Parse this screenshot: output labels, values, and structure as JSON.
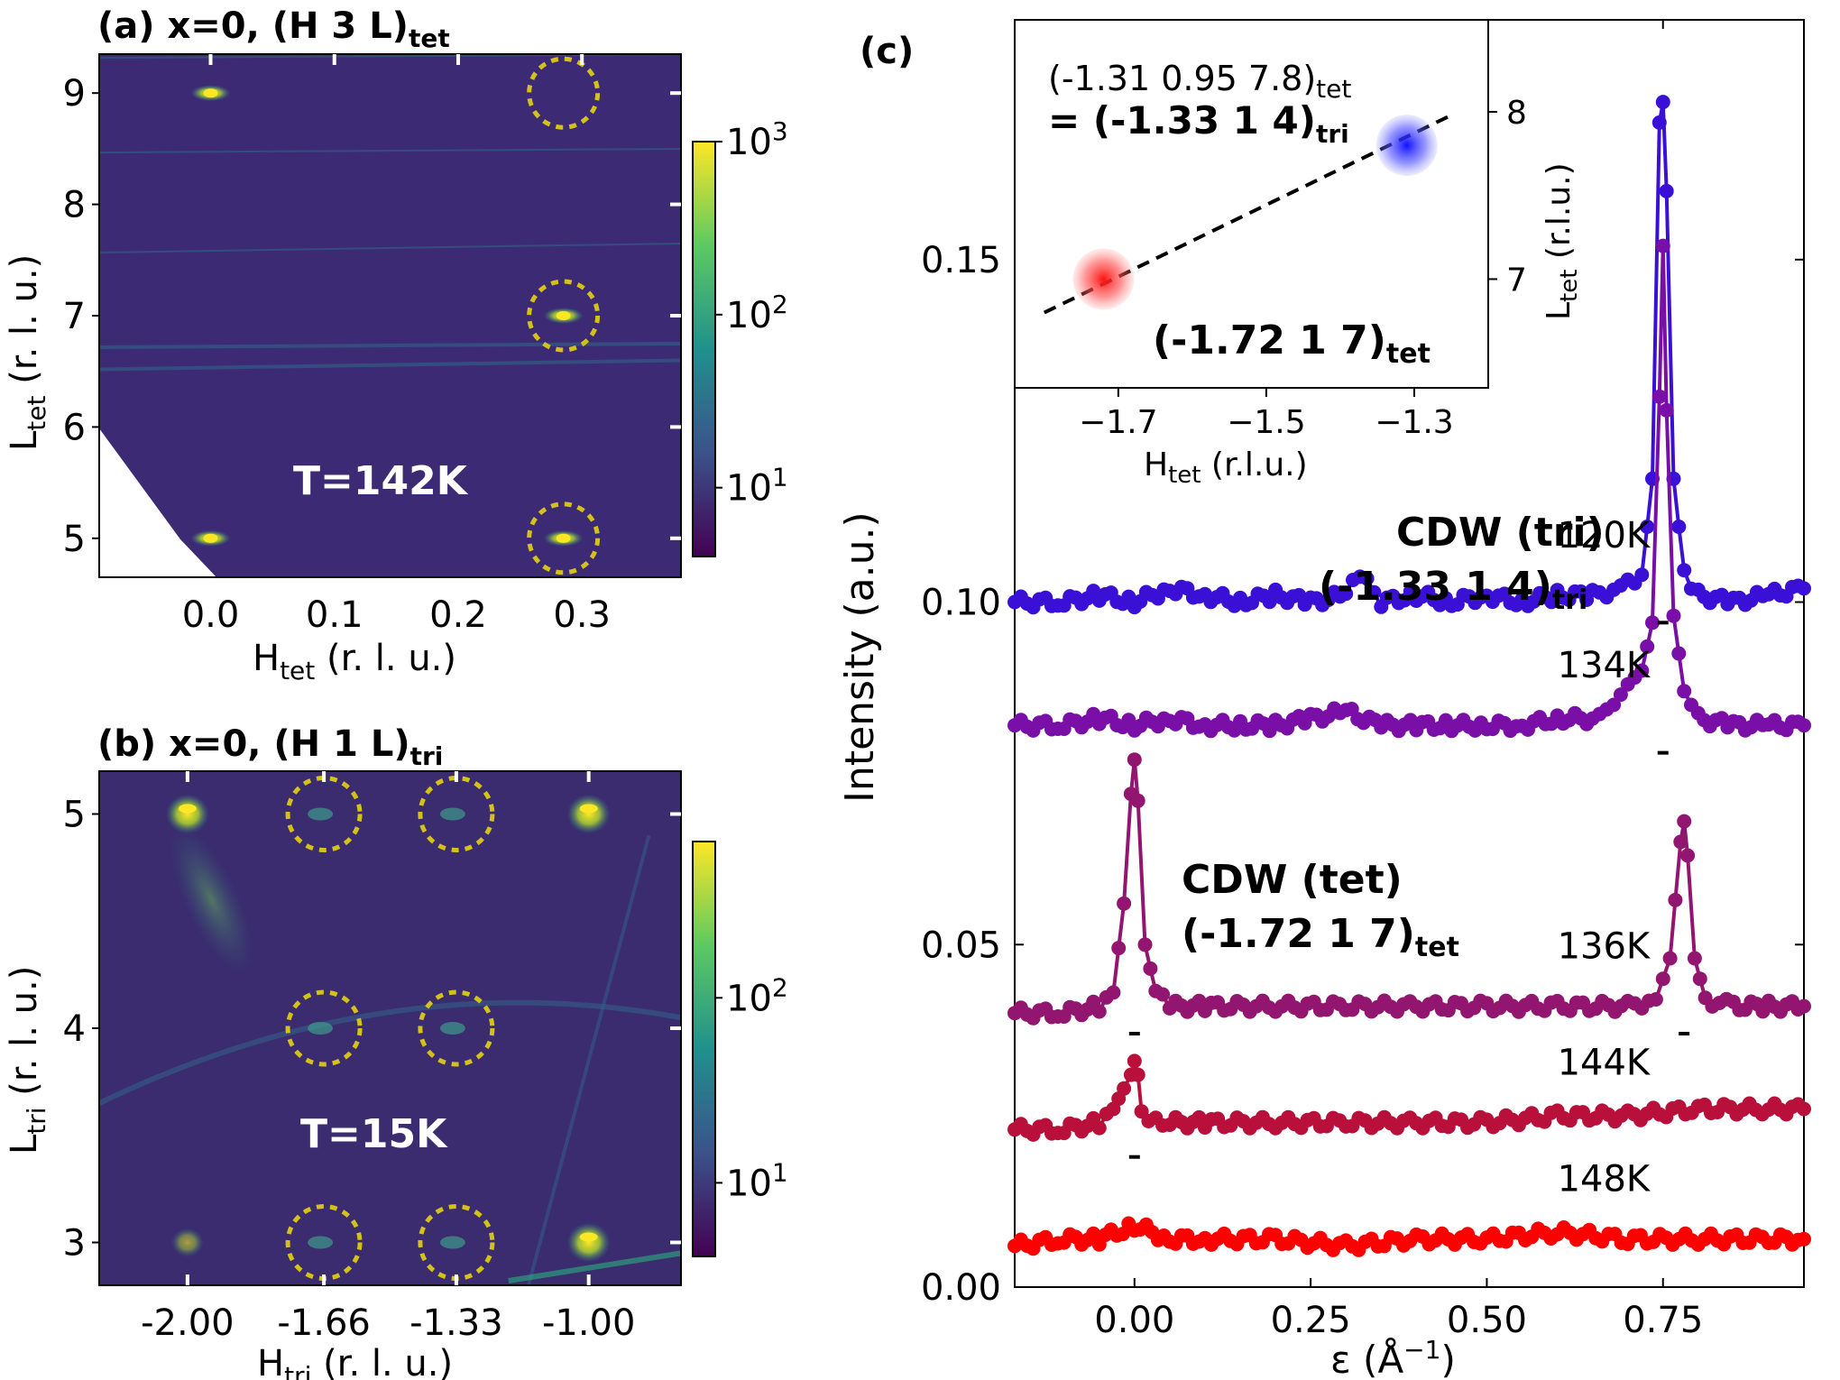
{
  "panels": {
    "a": {
      "title_main": "(a) x=0, (H 3 L)",
      "title_sub": "tet",
      "xlabel_main": "H",
      "xlabel_sub": "tet",
      "xlabel_unit": " (r. l. u.)",
      "ylabel_main": "L",
      "ylabel_sub": "tet",
      "ylabel_unit": " (r. l. u.)",
      "xticks": [
        "0.0",
        "0.1",
        "0.2",
        "0.3"
      ],
      "yticks": [
        "5",
        "6",
        "7",
        "8",
        "9"
      ],
      "annotation": "T=142K",
      "colorbar_ticks": [
        {
          "base": "10",
          "exp": "1"
        },
        {
          "base": "10",
          "exp": "2"
        },
        {
          "base": "10",
          "exp": "3"
        }
      ]
    },
    "b": {
      "title_main": "(b) x=0, (H 1 L)",
      "title_sub": "tri",
      "xlabel_main": "H",
      "xlabel_sub": "tri",
      "xlabel_unit": " (r. l. u.)",
      "ylabel_main": "L",
      "ylabel_sub": "tri",
      "ylabel_unit": " (r. l. u.)",
      "xticks": [
        "-2.00",
        "-1.66",
        "-1.33",
        "-1.00"
      ],
      "yticks": [
        "3",
        "4",
        "5"
      ],
      "annotation": "T=15K",
      "colorbar_ticks": [
        {
          "base": "10",
          "exp": "1"
        },
        {
          "base": "10",
          "exp": "2"
        }
      ]
    },
    "c": {
      "label": "(c)",
      "inset": {
        "line1_main": "(-1.31 0.95 7.8)",
        "line1_sub": "tet",
        "line2_main": "= (-1.33 1 4)",
        "line2_sub": "tri",
        "point_label_main": "(-1.72 1 7)",
        "point_label_sub": "tet",
        "xticks": [
          "−1.7",
          "−1.5",
          "−1.3"
        ],
        "yticks": [
          "7",
          "8"
        ],
        "xlabel_main": "H",
        "xlabel_sub": "tet",
        "xlabel_unit": " (r.l.u.)",
        "ylabel_main": "L",
        "ylabel_sub": "tet",
        "ylabel_unit": " (r.l.u.)"
      },
      "annotations": {
        "cdw_tri_line1": "CDW (tri)",
        "cdw_tri_line2_main": "(-1.33 1 4)",
        "cdw_tri_line2_sub": "tri",
        "cdw_tet_line1": "CDW (tet)",
        "cdw_tet_line2_main": "(-1.72 1 7)",
        "cdw_tet_line2_sub": "tet"
      },
      "xlabel": "ε (Å",
      "xlabel_exp": "−1",
      "xlabel_close": ")",
      "ylabel": "Intensity (a.u.)"
    }
  },
  "chart_data": [
    {
      "type": "heatmap",
      "panel": "a",
      "title": "(a) x=0, (H 3 L)tet",
      "xlabel": "Htet (r. l. u.)",
      "ylabel": "Ltet (r. l. u.)",
      "xlim": [
        -0.09,
        0.38
      ],
      "ylim": [
        4.65,
        9.35
      ],
      "colorbar": {
        "scale": "log",
        "range": [
          4,
          1000
        ]
      },
      "peaks": [
        {
          "h": 0.0,
          "l": 9.0,
          "intensity": 1000
        },
        {
          "h": 0.0,
          "l": 5.0,
          "intensity": 900
        },
        {
          "h": 0.285,
          "l": 7.0,
          "intensity": 500
        },
        {
          "h": 0.285,
          "l": 5.0,
          "intensity": 400
        }
      ],
      "circled_positions": [
        {
          "h": 0.285,
          "l": 9.0
        },
        {
          "h": 0.285,
          "l": 7.0
        },
        {
          "h": 0.285,
          "l": 5.0
        }
      ],
      "annotation": "T=142K"
    },
    {
      "type": "heatmap",
      "panel": "b",
      "title": "(b) x=0, (H 1 L)tri",
      "xlabel": "Htri (r. l. u.)",
      "ylabel": "Ltri (r. l. u.)",
      "xlim": [
        -2.22,
        -0.77
      ],
      "ylim": [
        2.8,
        5.2
      ],
      "colorbar": {
        "scale": "log",
        "range": [
          4,
          700
        ]
      },
      "peaks": [
        {
          "h": -2.0,
          "l": 5.0,
          "intensity": 700
        },
        {
          "h": -1.0,
          "l": 5.0,
          "intensity": 300
        },
        {
          "h": -1.0,
          "l": 3.0,
          "intensity": 400
        },
        {
          "h": -2.0,
          "l": 3.0,
          "intensity": 60
        }
      ],
      "circled_positions": [
        {
          "h": -1.66,
          "l": 5.0
        },
        {
          "h": -1.33,
          "l": 5.0
        },
        {
          "h": -1.66,
          "l": 4.0
        },
        {
          "h": -1.33,
          "l": 4.0
        },
        {
          "h": -1.66,
          "l": 3.0
        },
        {
          "h": -1.33,
          "l": 3.0
        }
      ],
      "annotation": "T=15K"
    },
    {
      "type": "scatter",
      "panel": "c-inset",
      "xlabel": "Htet (r.l.u.)",
      "ylabel": "Ltet (r.l.u.)",
      "xlim": [
        -1.84,
        -1.2
      ],
      "ylim": [
        6.35,
        8.55
      ],
      "points": [
        {
          "x": -1.72,
          "y": 7.0,
          "color": "#ff0000"
        },
        {
          "x": -1.31,
          "y": 7.8,
          "color": "#0000ff"
        }
      ],
      "line": {
        "x": [
          -1.8,
          -1.25
        ],
        "y": [
          6.8,
          7.98
        ],
        "style": "dashed"
      }
    },
    {
      "type": "line",
      "panel": "c",
      "xlabel": "ε (Å⁻¹)",
      "ylabel": "Intensity (a.u.)",
      "xlim": [
        -0.17,
        0.95
      ],
      "ylim": [
        0.0,
        0.185
      ],
      "xticks": [
        0.0,
        0.25,
        0.5,
        0.75
      ],
      "xtick_labels": [
        "0.00",
        "0.25",
        "0.50",
        "0.75"
      ],
      "yticks": [
        0.0,
        0.05,
        0.1,
        0.15
      ],
      "ytick_labels": [
        "0.00",
        "0.05",
        "0.10",
        "0.15"
      ],
      "series": [
        {
          "name": "120K",
          "color": "#3b10d6",
          "baseline": 0.101,
          "x": [
            -0.17,
            -0.1,
            -0.05,
            0.0,
            0.05,
            0.1,
            0.15,
            0.2,
            0.25,
            0.3,
            0.32,
            0.35,
            0.4,
            0.45,
            0.5,
            0.55,
            0.6,
            0.65,
            0.69,
            0.72,
            0.735,
            0.745,
            0.75,
            0.755,
            0.765,
            0.78,
            0.8,
            0.85,
            0.9,
            0.95
          ],
          "y": [
            0.1,
            0.1,
            0.101,
            0.1,
            0.102,
            0.101,
            0.1,
            0.101,
            0.1,
            0.101,
            0.104,
            0.1,
            0.101,
            0.1,
            0.101,
            0.1,
            0.101,
            0.101,
            0.102,
            0.104,
            0.118,
            0.17,
            0.173,
            0.16,
            0.118,
            0.104,
            0.101,
            0.1,
            0.101,
            0.102
          ]
        },
        {
          "name": "134K",
          "color": "#7a0fa8",
          "baseline": 0.082,
          "x": [
            -0.17,
            -0.1,
            -0.05,
            0.0,
            0.05,
            0.1,
            0.15,
            0.2,
            0.25,
            0.3,
            0.35,
            0.4,
            0.45,
            0.5,
            0.55,
            0.6,
            0.65,
            0.68,
            0.7,
            0.72,
            0.735,
            0.745,
            0.75,
            0.755,
            0.765,
            0.78,
            0.8,
            0.85,
            0.9,
            0.95
          ],
          "y": [
            0.082,
            0.082,
            0.083,
            0.082,
            0.083,
            0.082,
            0.082,
            0.082,
            0.083,
            0.084,
            0.082,
            0.082,
            0.082,
            0.082,
            0.082,
            0.083,
            0.083,
            0.085,
            0.088,
            0.09,
            0.097,
            0.13,
            0.152,
            0.128,
            0.098,
            0.087,
            0.083,
            0.082,
            0.082,
            0.082
          ]
        },
        {
          "name": "136K",
          "color": "#92156f",
          "baseline": 0.041,
          "x": [
            -0.17,
            -0.1,
            -0.05,
            -0.03,
            -0.015,
            -0.005,
            0.0,
            0.005,
            0.015,
            0.03,
            0.05,
            0.1,
            0.2,
            0.3,
            0.4,
            0.5,
            0.6,
            0.7,
            0.74,
            0.76,
            0.775,
            0.78,
            0.785,
            0.795,
            0.81,
            0.85,
            0.9,
            0.95
          ],
          "y": [
            0.04,
            0.04,
            0.041,
            0.043,
            0.056,
            0.072,
            0.077,
            0.071,
            0.05,
            0.043,
            0.041,
            0.041,
            0.041,
            0.041,
            0.041,
            0.041,
            0.041,
            0.041,
            0.042,
            0.048,
            0.065,
            0.068,
            0.063,
            0.048,
            0.042,
            0.041,
            0.041,
            0.041
          ]
        },
        {
          "name": "144K",
          "color": "#b8103b",
          "baseline": 0.024,
          "x": [
            -0.17,
            -0.1,
            -0.05,
            -0.03,
            -0.015,
            -0.005,
            0.0,
            0.005,
            0.01,
            0.02,
            0.05,
            0.1,
            0.2,
            0.3,
            0.4,
            0.5,
            0.6,
            0.7,
            0.8,
            0.9,
            0.95
          ],
          "y": [
            0.023,
            0.023,
            0.024,
            0.026,
            0.029,
            0.031,
            0.033,
            0.031,
            0.025,
            0.024,
            0.024,
            0.024,
            0.024,
            0.024,
            0.024,
            0.024,
            0.025,
            0.025,
            0.026,
            0.026,
            0.026
          ]
        },
        {
          "name": "148K",
          "color": "#ff0000",
          "baseline": 0.007,
          "x": [
            -0.17,
            -0.1,
            -0.05,
            0.0,
            0.05,
            0.1,
            0.2,
            0.3,
            0.4,
            0.5,
            0.6,
            0.7,
            0.8,
            0.9,
            0.95
          ],
          "y": [
            0.006,
            0.007,
            0.007,
            0.009,
            0.007,
            0.007,
            0.007,
            0.006,
            0.007,
            0.007,
            0.008,
            0.007,
            0.007,
            0.007,
            0.007
          ]
        }
      ],
      "peak_markers": [
        {
          "x": 0.75,
          "y": 0.097
        },
        {
          "x": 0.75,
          "y": 0.078
        },
        {
          "x": 0.0,
          "y": 0.037
        },
        {
          "x": 0.78,
          "y": 0.037
        },
        {
          "x": 0.0,
          "y": 0.019
        }
      ]
    }
  ]
}
